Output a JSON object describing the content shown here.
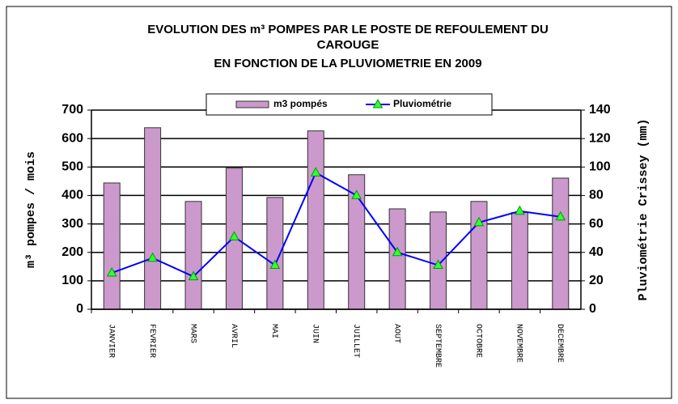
{
  "chart_data": {
    "type": "bar_line",
    "title": [
      "EVOLUTION DES m³ POMPES PAR LE POSTE DE REFOULEMENT DU",
      "CAROUGE",
      "EN FONCTION DE LA PLUVIOMETRIE EN 2009"
    ],
    "y_label": "m³ pompes / mois",
    "y2_label": "Pluviométrie Crissey (mm)",
    "categories": [
      "JANVIER",
      "FEVRIER",
      "MARS",
      "AVRIL",
      "MAI",
      "JUIN",
      "JUILLET",
      "AOUT",
      "SEPTEMBRE",
      "OCTOBRE",
      "NOVEMBRE",
      "DECEMBRE"
    ],
    "series": [
      {
        "name": "m3 pompés",
        "type": "bar",
        "color": "#cc99cc",
        "values": [
          444,
          638,
          379,
          496,
          393,
          627,
          473,
          353,
          342,
          379,
          340,
          461
        ]
      },
      {
        "name": "Pluviométrie",
        "type": "line",
        "axis": "y2",
        "color": "#0000ff",
        "marker_color": "#33ff33",
        "values": [
          25.6,
          36,
          23,
          51,
          31,
          96,
          80,
          40,
          31,
          61,
          69,
          65
        ]
      }
    ],
    "ylim": [
      0,
      700
    ],
    "yticks": [
      0,
      100,
      200,
      300,
      400,
      500,
      600,
      700
    ],
    "y2lim": [
      0,
      140
    ],
    "y2ticks": [
      0,
      20,
      40,
      60,
      80,
      100,
      120,
      140
    ],
    "grid": true
  }
}
